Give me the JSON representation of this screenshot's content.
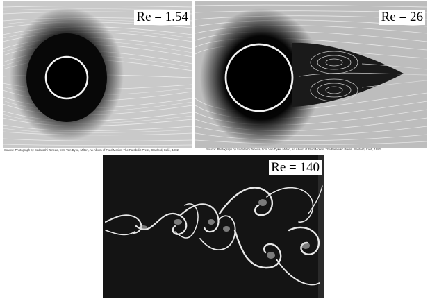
{
  "panels": {
    "top_left": {
      "label": "Re = 1.54",
      "caption": "Source: Photograph by Sadatoshi Taneda, from Van Dyke, Milton, An Album of Fluid Motion, The Parabolic Press, Stanford, Calif., 1982"
    },
    "top_right": {
      "label": "Re = 26",
      "caption": "Source: Photograph by Sadatoshi Taneda, from Van Dyke, Milton, An Album of Fluid Motion, The Parabolic Press, Stanford, Calif., 1982"
    },
    "bottom": {
      "label": "Re = 140"
    }
  },
  "colors": {
    "photo_dark": "#151515",
    "streak_light": "#e6e6e6",
    "background": "#ffffff"
  }
}
